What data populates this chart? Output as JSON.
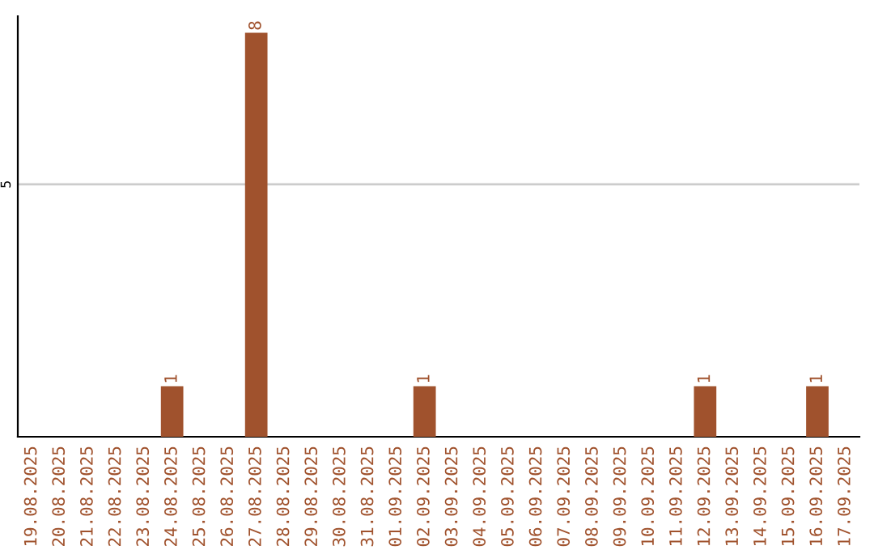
{
  "chart_data": {
    "type": "bar",
    "categories": [
      "19.08.2025",
      "20.08.2025",
      "21.08.2025",
      "22.08.2025",
      "23.08.2025",
      "24.08.2025",
      "25.08.2025",
      "26.08.2025",
      "27.08.2025",
      "28.08.2025",
      "29.08.2025",
      "30.08.2025",
      "31.08.2025",
      "01.09.2025",
      "02.09.2025",
      "03.09.2025",
      "04.09.2025",
      "05.09.2025",
      "06.09.2025",
      "07.09.2025",
      "08.09.2025",
      "09.09.2025",
      "10.09.2025",
      "11.09.2025",
      "12.09.2025",
      "13.09.2025",
      "14.09.2025",
      "15.09.2025",
      "16.09.2025",
      "17.09.2025"
    ],
    "values": [
      0,
      0,
      0,
      0,
      0,
      1,
      0,
      0,
      8,
      0,
      0,
      0,
      0,
      0,
      1,
      0,
      0,
      0,
      0,
      0,
      0,
      0,
      0,
      0,
      1,
      0,
      0,
      0,
      1,
      0
    ],
    "value_labels": [
      null,
      null,
      null,
      null,
      null,
      "1",
      null,
      null,
      "8",
      null,
      null,
      null,
      null,
      null,
      "1",
      null,
      null,
      null,
      null,
      null,
      null,
      null,
      null,
      null,
      "1",
      null,
      null,
      null,
      "1",
      null
    ],
    "color": "#a0522d",
    "ylim": [
      0,
      8.33
    ],
    "yticks": [
      5
    ],
    "grid": "y",
    "legend": false
  }
}
